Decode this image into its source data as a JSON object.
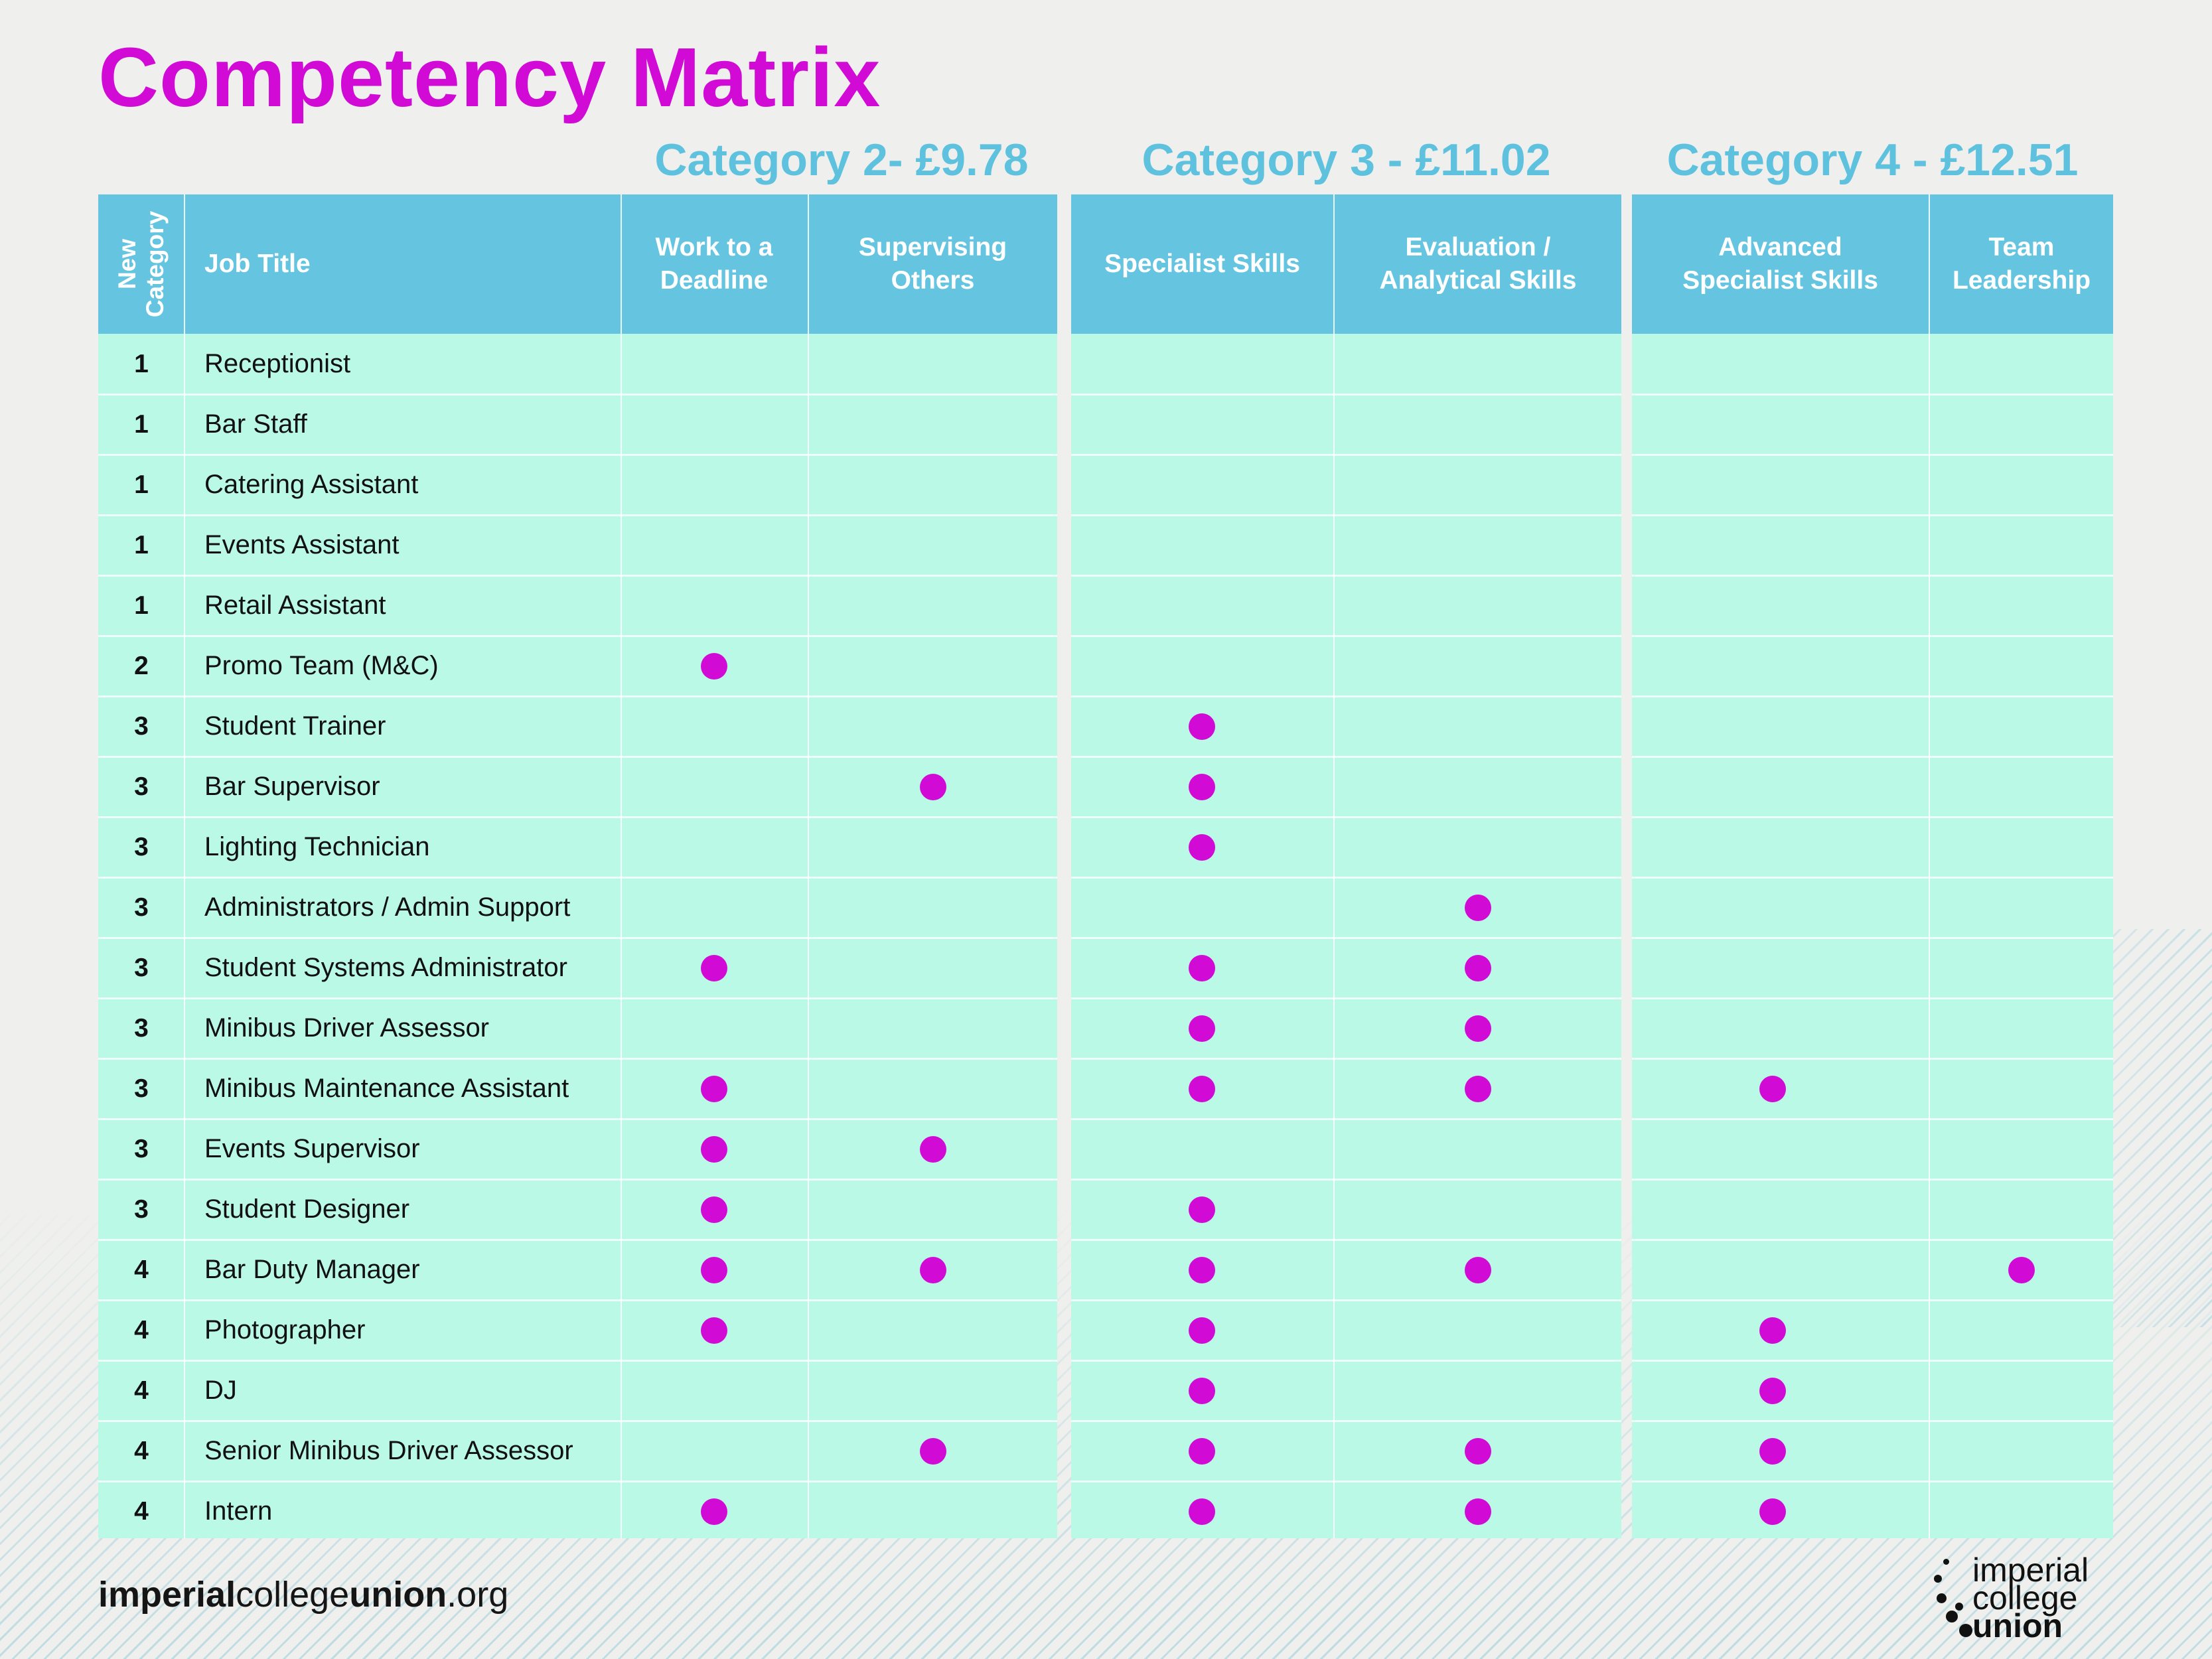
{
  "title": "Competency Matrix",
  "category_headers": [
    "Category 2- £9.78",
    "Category 3 - £11.02",
    "Category 4 - £12.51"
  ],
  "table": {
    "new_category_header": [
      "New",
      "Category"
    ],
    "job_title_header": "Job Title",
    "competencies": [
      [
        "Work to a",
        "Deadline"
      ],
      [
        "Supervising",
        "Others"
      ],
      [
        "Specialist Skills"
      ],
      [
        "Evaluation /",
        "Analytical Skills"
      ],
      [
        "Advanced",
        "Specialist Skills"
      ],
      [
        "Team",
        "Leadership"
      ]
    ],
    "rows": [
      {
        "category": "1",
        "job": "Receptionist",
        "marks": [
          0,
          0,
          0,
          0,
          0,
          0
        ]
      },
      {
        "category": "1",
        "job": "Bar Staff",
        "marks": [
          0,
          0,
          0,
          0,
          0,
          0
        ]
      },
      {
        "category": "1",
        "job": "Catering Assistant",
        "marks": [
          0,
          0,
          0,
          0,
          0,
          0
        ]
      },
      {
        "category": "1",
        "job": "Events Assistant",
        "marks": [
          0,
          0,
          0,
          0,
          0,
          0
        ]
      },
      {
        "category": "1",
        "job": "Retail Assistant",
        "marks": [
          0,
          0,
          0,
          0,
          0,
          0
        ]
      },
      {
        "category": "2",
        "job": "Promo Team (M&C)",
        "marks": [
          1,
          0,
          0,
          0,
          0,
          0
        ]
      },
      {
        "category": "3",
        "job": "Student Trainer",
        "marks": [
          0,
          0,
          1,
          0,
          0,
          0
        ]
      },
      {
        "category": "3",
        "job": "Bar Supervisor",
        "marks": [
          0,
          1,
          1,
          0,
          0,
          0
        ]
      },
      {
        "category": "3",
        "job": "Lighting Technician",
        "marks": [
          0,
          0,
          1,
          0,
          0,
          0
        ]
      },
      {
        "category": "3",
        "job": "Administrators / Admin Support",
        "marks": [
          0,
          0,
          0,
          1,
          0,
          0
        ]
      },
      {
        "category": "3",
        "job": "Student Systems Administrator",
        "marks": [
          1,
          0,
          1,
          1,
          0,
          0
        ]
      },
      {
        "category": "3",
        "job": "Minibus Driver Assessor",
        "marks": [
          0,
          0,
          1,
          1,
          0,
          0
        ]
      },
      {
        "category": "3",
        "job": "Minibus Maintenance Assistant",
        "marks": [
          1,
          0,
          1,
          1,
          1,
          0
        ]
      },
      {
        "category": "3",
        "job": "Events Supervisor",
        "marks": [
          1,
          1,
          0,
          0,
          0,
          0
        ]
      },
      {
        "category": "3",
        "job": "Student Designer",
        "marks": [
          1,
          0,
          1,
          0,
          0,
          0
        ]
      },
      {
        "category": "4",
        "job": "Bar Duty Manager",
        "marks": [
          1,
          1,
          1,
          1,
          0,
          1
        ]
      },
      {
        "category": "4",
        "job": "Photographer",
        "marks": [
          1,
          0,
          1,
          0,
          1,
          0
        ]
      },
      {
        "category": "4",
        "job": "DJ",
        "marks": [
          0,
          0,
          1,
          0,
          1,
          0
        ]
      },
      {
        "category": "4",
        "job": "Senior Minibus Driver Assessor",
        "marks": [
          0,
          1,
          1,
          1,
          1,
          0
        ]
      },
      {
        "category": "4",
        "job": "Intern",
        "marks": [
          1,
          0,
          1,
          1,
          1,
          0
        ]
      }
    ]
  },
  "footer": {
    "url_parts": [
      "imperial",
      "college",
      "union",
      ".org"
    ],
    "logo_lines": [
      "imperial",
      "college",
      "union"
    ]
  },
  "colors": {
    "accent": "#d10ad6",
    "header_blue": "#65c5e1",
    "category_blue": "#5ec2df",
    "row_fill": "#bbf9e7"
  }
}
